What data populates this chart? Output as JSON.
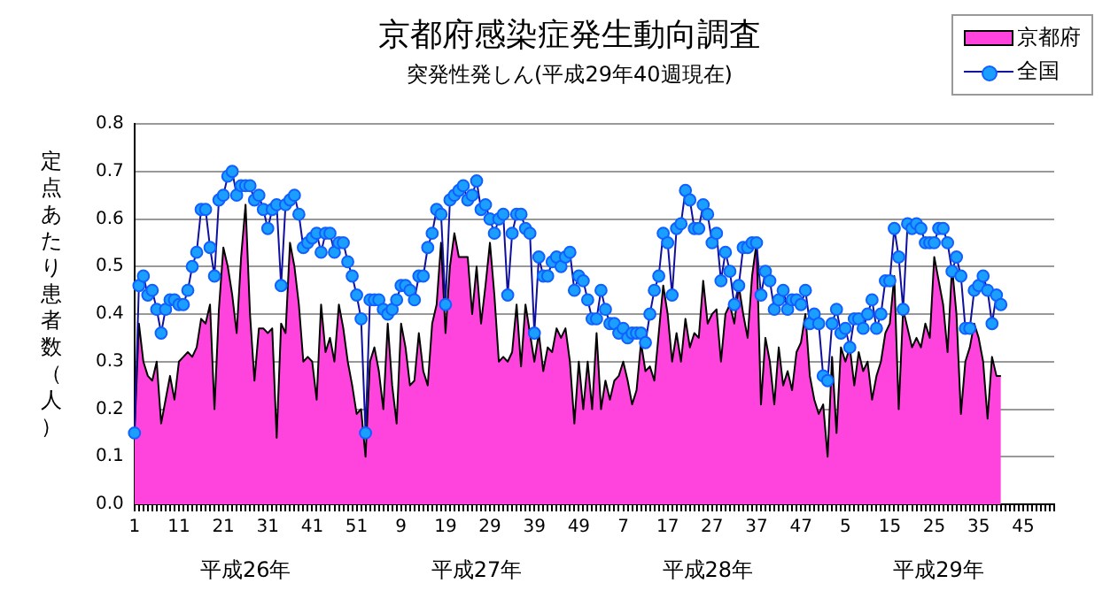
{
  "chart_data": {
    "type": "area",
    "title": "京都府感染症発生動向調査",
    "subtitle": "突発性発しん(平成29年40週現在)",
    "ylabel": "定点あたり患者数（人）",
    "categories": [
      "1",
      null,
      null,
      null,
      null,
      null,
      null,
      null,
      null,
      null,
      "11",
      null,
      null,
      null,
      null,
      null,
      null,
      null,
      null,
      null,
      "21",
      null,
      null,
      null,
      null,
      null,
      null,
      null,
      null,
      null,
      "31",
      null,
      null,
      null,
      null,
      null,
      null,
      null,
      null,
      null,
      "41",
      null,
      null,
      null,
      null,
      null,
      null,
      null,
      null,
      null,
      "51",
      null,
      null,
      null,
      null,
      null,
      null,
      null,
      null,
      null,
      "9",
      null,
      null,
      null,
      null,
      null,
      null,
      null,
      null,
      null,
      "19",
      null,
      null,
      null,
      null,
      null,
      null,
      null,
      null,
      null,
      "29",
      null,
      null,
      null,
      null,
      null,
      null,
      null,
      null,
      null,
      "39",
      null,
      null,
      null,
      null,
      null,
      null,
      null,
      null,
      null,
      "49",
      null,
      null,
      null,
      null,
      null,
      null,
      null,
      null,
      null,
      "7",
      null,
      null,
      null,
      null,
      null,
      null,
      null,
      null,
      null,
      "17",
      null,
      null,
      null,
      null,
      null,
      null,
      null,
      null,
      null,
      "27",
      null,
      null,
      null,
      null,
      null,
      null,
      null,
      null,
      null,
      "37",
      null,
      null,
      null,
      null,
      null,
      null,
      null,
      null,
      null,
      "47",
      null,
      null,
      null,
      null,
      null,
      null,
      null,
      null,
      null,
      "5",
      null,
      null,
      null,
      null,
      null,
      null,
      null,
      null,
      null,
      "15",
      null,
      null,
      null,
      null,
      null,
      null,
      null,
      null,
      null,
      "25",
      null,
      null,
      null,
      null,
      null,
      null,
      null,
      null,
      null,
      "35",
      null,
      null,
      null,
      null,
      null,
      null,
      null,
      null,
      null,
      "45",
      null,
      null,
      null,
      null,
      null,
      null,
      null
    ],
    "series": [
      {
        "name": "京都府",
        "type": "area",
        "color": "#ff44dd",
        "values": [
          0.15,
          0.38,
          0.3,
          0.27,
          0.26,
          0.3,
          0.17,
          0.22,
          0.27,
          0.22,
          0.3,
          0.31,
          0.32,
          0.31,
          0.33,
          0.39,
          0.38,
          0.42,
          0.2,
          0.41,
          0.54,
          0.5,
          0.44,
          0.36,
          0.52,
          0.63,
          0.4,
          0.26,
          0.37,
          0.37,
          0.36,
          0.37,
          0.14,
          0.38,
          0.36,
          0.55,
          0.5,
          0.42,
          0.3,
          0.31,
          0.3,
          0.22,
          0.42,
          0.32,
          0.35,
          0.3,
          0.42,
          0.37,
          0.3,
          0.25,
          0.19,
          0.2,
          0.1,
          0.3,
          0.33,
          0.28,
          0.2,
          0.38,
          0.25,
          0.17,
          0.38,
          0.33,
          0.25,
          0.26,
          0.36,
          0.28,
          0.25,
          0.38,
          0.42,
          0.55,
          0.36,
          0.5,
          0.57,
          0.52,
          0.52,
          0.52,
          0.4,
          0.5,
          0.38,
          0.46,
          0.55,
          0.44,
          0.3,
          0.31,
          0.3,
          0.32,
          0.42,
          0.29,
          0.42,
          0.36,
          0.3,
          0.36,
          0.28,
          0.33,
          0.32,
          0.37,
          0.35,
          0.37,
          0.3,
          0.17,
          0.3,
          0.2,
          0.3,
          0.2,
          0.36,
          0.2,
          0.26,
          0.22,
          0.26,
          0.27,
          0.3,
          0.26,
          0.21,
          0.24,
          0.34,
          0.28,
          0.29,
          0.26,
          0.36,
          0.46,
          0.4,
          0.3,
          0.36,
          0.3,
          0.39,
          0.33,
          0.36,
          0.35,
          0.47,
          0.38,
          0.4,
          0.41,
          0.3,
          0.4,
          0.42,
          0.38,
          0.46,
          0.4,
          0.35,
          0.48,
          0.55,
          0.21,
          0.35,
          0.3,
          0.21,
          0.33,
          0.25,
          0.28,
          0.24,
          0.32,
          0.34,
          0.4,
          0.27,
          0.22,
          0.19,
          0.21,
          0.1,
          0.31,
          0.15,
          0.33,
          0.3,
          0.33,
          0.25,
          0.32,
          0.28,
          0.3,
          0.22,
          0.27,
          0.3,
          0.36,
          0.38,
          0.48,
          0.2,
          0.41,
          0.37,
          0.33,
          0.35,
          0.33,
          0.38,
          0.35,
          0.52,
          0.47,
          0.42,
          0.32,
          0.5,
          0.4,
          0.19,
          0.3,
          0.33,
          0.38,
          0.35,
          0.3,
          0.18,
          0.31,
          0.27,
          0.27,
          null,
          null,
          null,
          null,
          null,
          null,
          null,
          null,
          null,
          null,
          null,
          null
        ]
      },
      {
        "name": "全国",
        "type": "line",
        "color": "#1a9fff",
        "marker": "circle",
        "values": [
          0.15,
          0.46,
          0.48,
          0.44,
          0.45,
          0.41,
          0.36,
          0.41,
          0.43,
          0.43,
          0.42,
          0.42,
          0.45,
          0.5,
          0.53,
          0.62,
          0.62,
          0.54,
          0.48,
          0.64,
          0.65,
          0.69,
          0.7,
          0.65,
          0.67,
          0.67,
          0.67,
          0.64,
          0.65,
          0.62,
          0.58,
          0.62,
          0.63,
          0.46,
          0.63,
          0.64,
          0.65,
          0.61,
          0.54,
          0.55,
          0.56,
          0.57,
          0.53,
          0.57,
          0.57,
          0.53,
          0.55,
          0.55,
          0.51,
          0.48,
          0.44,
          0.39,
          0.15,
          0.43,
          0.43,
          0.43,
          0.41,
          0.4,
          0.41,
          0.43,
          0.46,
          0.46,
          0.45,
          0.43,
          0.48,
          0.48,
          0.54,
          0.57,
          0.62,
          0.61,
          0.42,
          0.64,
          0.65,
          0.66,
          0.67,
          0.64,
          0.65,
          0.68,
          0.62,
          0.63,
          0.6,
          0.57,
          0.6,
          0.61,
          0.44,
          0.57,
          0.61,
          0.61,
          0.58,
          0.57,
          0.36,
          0.52,
          0.48,
          0.48,
          0.51,
          0.52,
          0.5,
          0.52,
          0.53,
          0.45,
          0.48,
          0.47,
          0.43,
          0.39,
          0.39,
          0.45,
          0.41,
          0.38,
          0.38,
          0.36,
          0.37,
          0.35,
          0.36,
          0.36,
          0.36,
          0.34,
          0.4,
          0.45,
          0.48,
          0.57,
          0.55,
          0.44,
          0.58,
          0.59,
          0.66,
          0.64,
          0.58,
          0.58,
          0.63,
          0.61,
          0.55,
          0.57,
          0.47,
          0.53,
          0.49,
          0.42,
          0.46,
          0.54,
          0.54,
          0.55,
          0.55,
          0.44,
          0.49,
          0.47,
          0.41,
          0.43,
          0.45,
          0.41,
          0.43,
          0.43,
          0.42,
          0.45,
          0.38,
          0.4,
          0.38,
          0.27,
          0.26,
          0.38,
          0.41,
          0.36,
          0.37,
          0.33,
          0.39,
          0.39,
          0.37,
          0.4,
          0.43,
          0.37,
          0.4,
          0.47,
          0.47,
          0.58,
          0.52,
          0.41,
          0.59,
          0.58,
          0.59,
          0.58,
          0.55,
          0.55,
          0.55,
          0.58,
          0.58,
          0.55,
          0.49,
          0.52,
          0.48,
          0.37,
          0.37,
          0.45,
          0.46,
          0.48,
          0.45,
          0.38,
          0.44,
          0.42,
          null,
          null,
          null,
          null,
          null,
          null,
          null,
          null,
          null,
          null,
          null,
          null
        ]
      }
    ],
    "ylim": [
      0,
      0.8
    ],
    "yticks": [
      {
        "value": 0,
        "label": "0.0"
      },
      {
        "value": 0.1,
        "label": "0.1"
      },
      {
        "value": 0.2,
        "label": "0.2"
      },
      {
        "value": 0.3,
        "label": "0.3"
      },
      {
        "value": 0.4,
        "label": "0.4"
      },
      {
        "value": 0.5,
        "label": "0.5"
      },
      {
        "value": 0.6,
        "label": "0.6"
      },
      {
        "value": 0.7,
        "label": "0.7"
      },
      {
        "value": 0.8,
        "label": "0.8"
      }
    ],
    "grid": "y",
    "legend": "top right",
    "annotations": [
      "平成26年",
      "平成27年",
      "平成28年",
      "平成29年"
    ]
  }
}
